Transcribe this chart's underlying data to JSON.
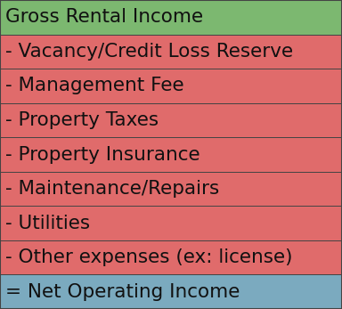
{
  "rows": [
    {
      "label": "Gross Rental Income",
      "prefix": "",
      "color": "#7cb870"
    },
    {
      "label": "Vacancy/Credit Loss Reserve",
      "prefix": "- ",
      "color": "#e06b6b"
    },
    {
      "label": "Management Fee",
      "prefix": "- ",
      "color": "#e06b6b"
    },
    {
      "label": "Property Taxes",
      "prefix": "- ",
      "color": "#e06b6b"
    },
    {
      "label": "Property Insurance",
      "prefix": "- ",
      "color": "#e06b6b"
    },
    {
      "label": "Maintenance/Repairs",
      "prefix": "- ",
      "color": "#e06b6b"
    },
    {
      "label": "Utilities",
      "prefix": "- ",
      "color": "#e06b6b"
    },
    {
      "label": "Other expenses (ex: license)",
      "prefix": "- ",
      "color": "#e06b6b"
    },
    {
      "label": "Net Operating Income",
      "prefix": "= ",
      "color": "#7baabf"
    }
  ],
  "border_color": "#444444",
  "text_color": "#111111",
  "font_size": 15.5,
  "fig_width": 3.84,
  "fig_height": 3.47
}
